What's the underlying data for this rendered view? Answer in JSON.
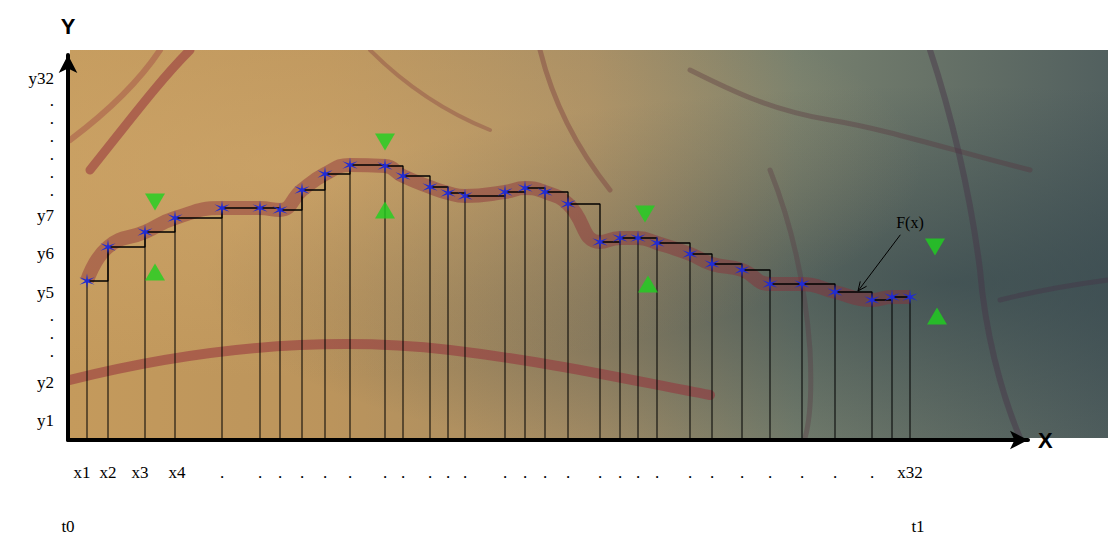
{
  "chart_data": {
    "type": "line",
    "line_style": "step",
    "x_label": "X",
    "y_label": "Y",
    "xlim": [
      0,
      960
    ],
    "ylim": [
      0,
      385
    ],
    "grid": false,
    "xticks": [
      {
        "value": 14,
        "label": "x1"
      },
      {
        "value": 40,
        "label": "x2"
      },
      {
        "value": 72,
        "label": "x3"
      },
      {
        "value": 109,
        "label": "x4"
      },
      {
        "value": 154,
        "label": "."
      },
      {
        "value": 192,
        "label": "."
      },
      {
        "value": 212,
        "label": "."
      },
      {
        "value": 234,
        "label": "."
      },
      {
        "value": 257,
        "label": "."
      },
      {
        "value": 282,
        "label": "."
      },
      {
        "value": 317,
        "label": "."
      },
      {
        "value": 335,
        "label": "."
      },
      {
        "value": 362,
        "label": "."
      },
      {
        "value": 380,
        "label": "."
      },
      {
        "value": 397,
        "label": "."
      },
      {
        "value": 437,
        "label": "."
      },
      {
        "value": 457,
        "label": "."
      },
      {
        "value": 477,
        "label": "."
      },
      {
        "value": 500,
        "label": "."
      },
      {
        "value": 532,
        "label": "."
      },
      {
        "value": 552,
        "label": "."
      },
      {
        "value": 570,
        "label": "."
      },
      {
        "value": 589,
        "label": "."
      },
      {
        "value": 622,
        "label": "."
      },
      {
        "value": 644,
        "label": "."
      },
      {
        "value": 674,
        "label": "."
      },
      {
        "value": 702,
        "label": "."
      },
      {
        "value": 734,
        "label": "."
      },
      {
        "value": 767,
        "label": "."
      },
      {
        "value": 804,
        "label": "."
      },
      {
        "value": 842,
        "label": "x32"
      }
    ],
    "t_ticks": [
      {
        "value": 0,
        "label": "t0"
      },
      {
        "value": 850,
        "label": "t1"
      }
    ],
    "yticks": [
      {
        "value": 20,
        "label": "y1"
      },
      {
        "value": 58,
        "label": "y2"
      },
      {
        "value": 89,
        "label": "."
      },
      {
        "value": 107,
        "label": "."
      },
      {
        "value": 125,
        "label": "."
      },
      {
        "value": 148,
        "label": "y5"
      },
      {
        "value": 187,
        "label": "y6"
      },
      {
        "value": 225,
        "label": "y7"
      },
      {
        "value": 250,
        "label": "."
      },
      {
        "value": 268,
        "label": "."
      },
      {
        "value": 286,
        "label": "."
      },
      {
        "value": 304,
        "label": "."
      },
      {
        "value": 322,
        "label": "."
      },
      {
        "value": 340,
        "label": "."
      },
      {
        "value": 362,
        "label": "y32"
      }
    ],
    "x": [
      19,
      40,
      77,
      107,
      154,
      192,
      212,
      234,
      257,
      282,
      317,
      335,
      362,
      380,
      397,
      437,
      457,
      477,
      500,
      532,
      552,
      570,
      589,
      622,
      644,
      674,
      702,
      734,
      767,
      804,
      824,
      842
    ],
    "values": [
      159,
      193,
      208,
      222,
      232,
      232,
      230,
      250,
      266,
      275,
      274,
      264,
      253,
      247,
      244,
      248,
      252,
      248,
      236,
      198,
      202,
      202,
      197,
      186,
      176,
      170,
      156,
      156,
      148,
      140,
      143,
      143
    ],
    "color": "#1f2bd6",
    "marker": "asterisk",
    "markers": [
      {
        "marker": "triangle-down",
        "color": "#1ed21e",
        "x": [
          87,
          317,
          577,
          867
        ],
        "y": [
          238,
          298,
          226,
          193
        ]
      },
      {
        "marker": "triangle-up",
        "color": "#1ed21e",
        "x": [
          87,
          317,
          580,
          869
        ],
        "y": [
          168,
          230,
          156,
          124
        ]
      }
    ],
    "annotations": [
      {
        "text": "F(x)",
        "x": 842,
        "y": 218,
        "arrow_x": 790,
        "arrow_y": 149
      }
    ]
  }
}
